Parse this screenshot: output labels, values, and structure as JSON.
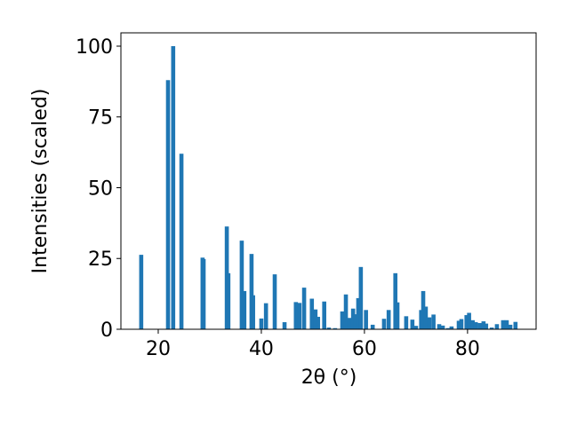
{
  "chart_data": {
    "type": "bar",
    "x_label": "2θ (°)",
    "y_label": "Intensities (scaled)",
    "x": [
      16.7,
      21.9,
      22.9,
      24.5,
      28.6,
      28.8,
      33.3,
      33.6,
      36.2,
      36.7,
      38.1,
      38.4,
      40.0,
      40.9,
      42.6,
      44.5,
      46.7,
      47.4,
      48.3,
      49.8,
      50.5,
      51.0,
      52.2,
      53.1,
      54.3,
      55.7,
      56.4,
      57.1,
      57.8,
      58.3,
      58.8,
      59.3,
      60.3,
      61.6,
      63.8,
      64.7,
      66.0,
      66.4,
      68.1,
      69.3,
      70.0,
      71.0,
      71.4,
      71.9,
      72.6,
      73.4,
      74.5,
      75.2,
      76.2,
      76.9,
      78.3,
      78.8,
      79.8,
      80.3,
      81.0,
      81.6,
      82.4,
      83.1,
      83.6,
      84.7,
      85.7,
      86.9,
      87.6,
      88.3,
      89.3
    ],
    "values": [
      26.3,
      88,
      100,
      62,
      25.3,
      24.8,
      36.3,
      19.8,
      31.3,
      13.5,
      26.6,
      12,
      3.8,
      9.2,
      19.4,
      2.5,
      9.6,
      9.3,
      14.7,
      10.8,
      7,
      4.4,
      9.8,
      0.6,
      0.4,
      6.3,
      12.3,
      4,
      7.3,
      5.3,
      11,
      22,
      6.8,
      1.6,
      3.7,
      6.8,
      19.8,
      9.5,
      4.6,
      3.4,
      1.2,
      6.8,
      13.5,
      8,
      4.2,
      5.2,
      1.8,
      1.3,
      0.4,
      1,
      3,
      3.6,
      5,
      5.8,
      3.2,
      2.5,
      2.2,
      2.8,
      2,
      0.6,
      1.8,
      3.2,
      3.2,
      1.6,
      2.6
    ],
    "color": "#1f77b4",
    "xlim": [
      12.76,
      93.3
    ],
    "ylim": [
      0,
      104.7
    ],
    "xticks": [
      20,
      40,
      60,
      80
    ],
    "yticks": [
      0,
      25,
      50,
      75,
      100
    ]
  }
}
